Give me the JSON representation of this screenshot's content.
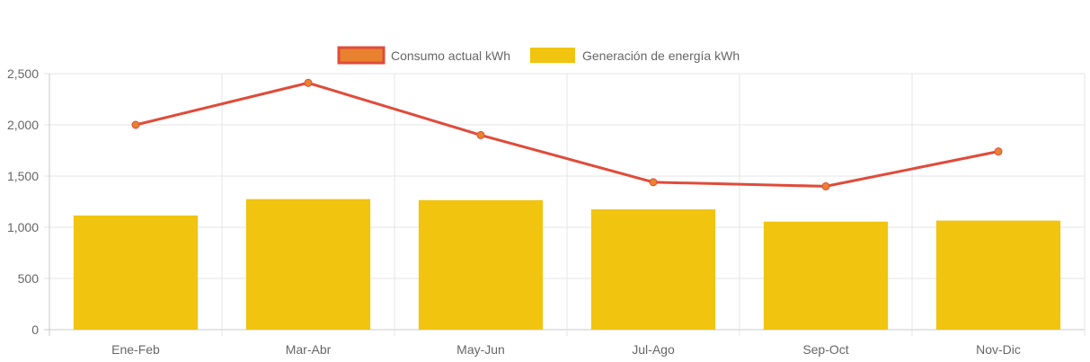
{
  "chart_data": {
    "type": "bar",
    "categories": [
      "Ene-Feb",
      "Mar-Abr",
      "May-Jun",
      "Jul-Ago",
      "Sep-Oct",
      "Nov-Dic"
    ],
    "series": [
      {
        "name": "Consumo actual kWh",
        "type": "line",
        "values": [
          2000,
          2410,
          1900,
          1440,
          1400,
          1740
        ],
        "color": "#e04b3a",
        "point_color": "#e8822e"
      },
      {
        "name": "Generación de energía kWh",
        "type": "bar",
        "values": [
          1115,
          1275,
          1265,
          1175,
          1055,
          1065
        ],
        "color": "#f0c40f"
      }
    ],
    "y_ticks": [
      "0",
      "500",
      "1,000",
      "1,500",
      "2,000",
      "2,500"
    ],
    "ylim": [
      0,
      2500
    ],
    "grid": true,
    "legend_position": "top-center"
  }
}
